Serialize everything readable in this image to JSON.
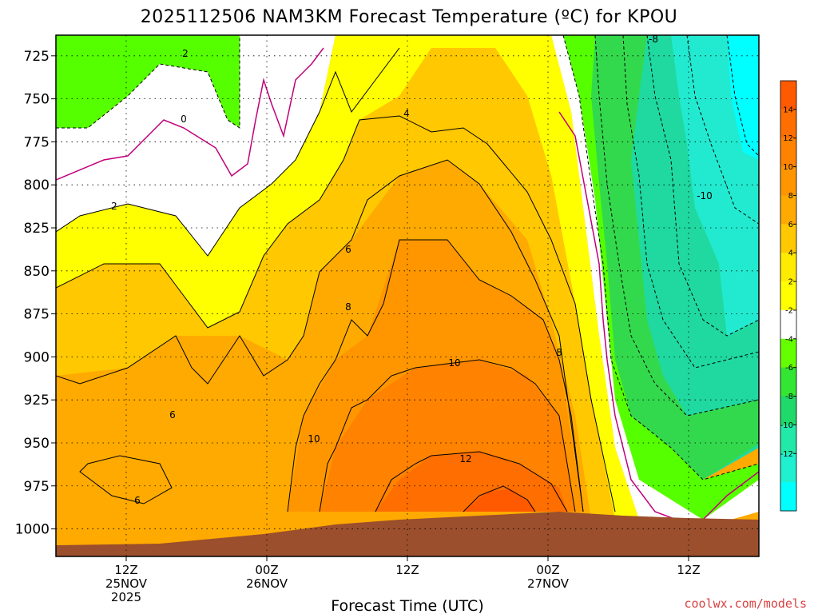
{
  "chart_data": {
    "type": "heatmap",
    "title": "2025112506 NAM3KM Forecast Temperature (ºC) for KPOU",
    "xlabel": "Forecast Time (UTC)",
    "ylabel": "",
    "y_axis": {
      "reversed": true,
      "ticks": [
        "725",
        "750",
        "775",
        "800",
        "825",
        "850",
        "875",
        "900",
        "925",
        "950",
        "975",
        "1000"
      ],
      "ylim": [
        1016,
        713
      ]
    },
    "x_axis": {
      "ticks": [
        {
          "line1": "12Z",
          "line2": "25NOV",
          "line3": "2025"
        },
        {
          "line1": "00Z",
          "line2": "26NOV",
          "line3": ""
        },
        {
          "line1": "12Z",
          "line2": "",
          "line3": ""
        },
        {
          "line1": "00Z",
          "line2": "27NOV",
          "line3": ""
        },
        {
          "line1": "12Z",
          "line2": "",
          "line3": ""
        }
      ]
    },
    "colorbar": {
      "levels": [
        "14",
        "12",
        "10",
        "8",
        "6",
        "4",
        "2",
        "-2",
        "-4",
        "-6",
        "-8",
        "-10",
        "-12"
      ],
      "colors": [
        "#ff5a00",
        "#ff6e00",
        "#ff8200",
        "#ff9600",
        "#ffaa00",
        "#ffc800",
        "#ffeb00",
        "#ffff00",
        "#ffffff",
        "#66ff00",
        "#33e633",
        "#1fd96a",
        "#22e8a8",
        "#1ff0d0",
        "#00ffff"
      ]
    },
    "contour_labels": [
      "2",
      "0",
      "2",
      "4",
      "6",
      "8",
      "10",
      "12",
      "10",
      "8",
      "6",
      "6",
      "-8",
      "-10"
    ],
    "grid": true,
    "terrain_color": "#9b4f2c",
    "freezing_line_color": "#c0007a"
  },
  "credit": "coolwx.com/models"
}
